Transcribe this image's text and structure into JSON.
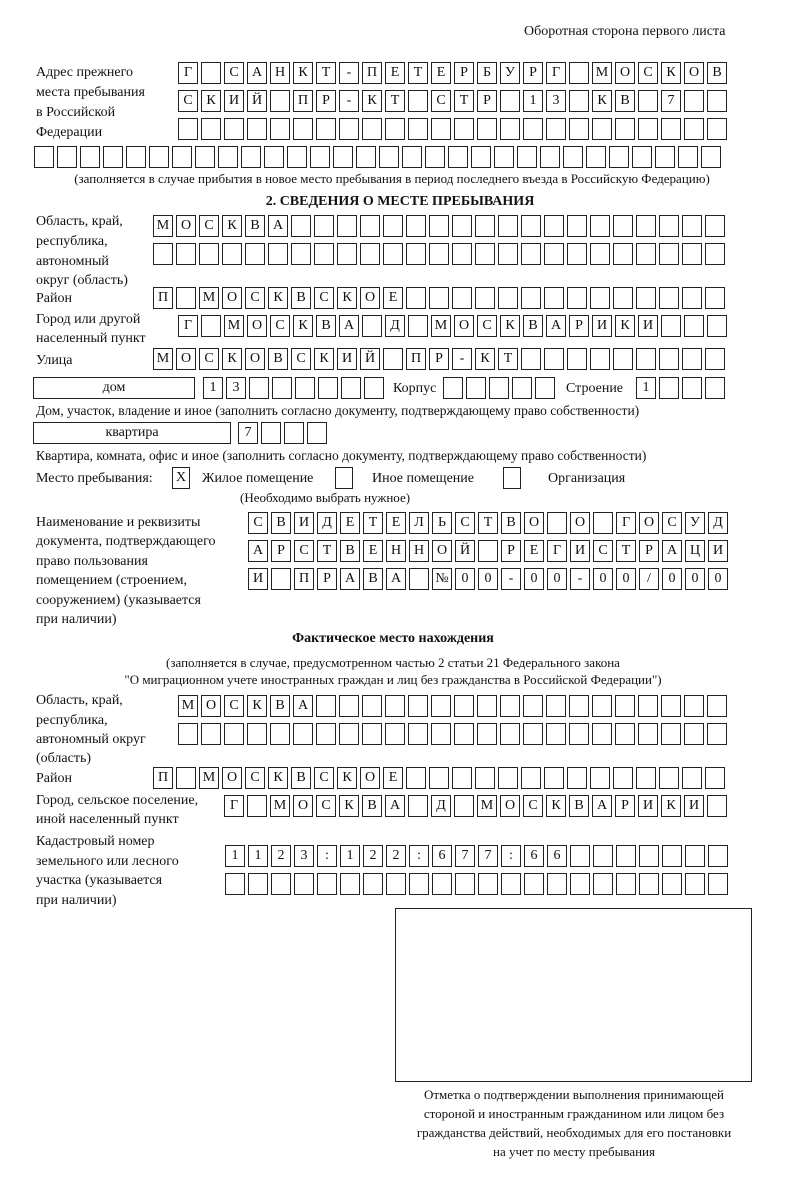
{
  "header": "Оборотная сторона первого листа",
  "prev_address": {
    "label": [
      "Адрес прежнего",
      "места пребывания",
      "в Российской",
      "Федерации"
    ],
    "rows": [
      "Г САНКТ-ПЕТЕРБУРГ МОСКОВ",
      "СКИЙ ПР-КТ СТР 13 КВ 7  ",
      "                        ",
      "                              "
    ],
    "note": "(заполняется в случае прибытия в новое место пребывания в период последнего въезда в Российскую Федерацию)"
  },
  "section2": {
    "title": "2. СВЕДЕНИЯ О МЕСТЕ ПРЕБЫВАНИЯ",
    "region_label": [
      "Область, край,",
      "республика,",
      "автономный",
      "округ (область)"
    ],
    "region_rows": [
      "МОСКВА                   ",
      "                         "
    ],
    "district_label": "Район",
    "district_row": "П МОСКВСКОЕ              ",
    "city_label": [
      "Город или другой",
      "населенный пункт"
    ],
    "city_row": "Г МОСКВА Д МОСКВАРИКИ   ",
    "street_label": "Улица",
    "street_row": "МОСКОВСКИЙ ПР-КТ         ",
    "house_type": "дом",
    "house_row": "13      ",
    "korpus_label": "Корпус",
    "korpus_row": "     ",
    "building_label": "Строение",
    "building_row": "1   ",
    "house_note": "Дом, участок, владение и иное (заполнить согласно документу, подтверждающему право собственности)",
    "flat_type": "квартира",
    "flat_row": "7   ",
    "flat_note": "Квартира, комната, офис и иное (заполнить согласно документу, подтверждающему право собственности)",
    "stay_label": "Место пребывания:",
    "stay_options": [
      {
        "label": "Жилое помещение",
        "mark": "X"
      },
      {
        "label": "Иное помещение",
        "mark": ""
      },
      {
        "label": "Организация",
        "mark": ""
      }
    ],
    "stay_note": "(Необходимо выбрать нужное)",
    "doc_label": [
      "Наименование и реквизиты",
      "документа, подтверждающего",
      "право пользования",
      "помещением (строением,",
      "сооружением) (указывается",
      "при наличии)"
    ],
    "doc_rows": [
      "СВИДЕТЕЛЬСТВО О ГОСУД",
      "АРСТВЕННОЙ РЕГИСТРАЦИ",
      "И ПРАВА №00-00-00/000"
    ]
  },
  "actual": {
    "title": "Фактическое место нахождения",
    "note1": "(заполняется в случае, предусмотренном частью 2 статьи 21 Федерального закона",
    "note2": "\"О миграционном учете иностранных граждан и лиц без гражданства в Российской Федерации\")",
    "region_label": [
      "Область, край,",
      "республика,",
      "автономный округ",
      "(область)"
    ],
    "region_rows": [
      "МОСКВА                  ",
      "                        "
    ],
    "district_label": "Район",
    "district_row": "П МОСКВСКОЕ              ",
    "city_label": [
      "Город, сельское поселение,",
      "иной населенный пункт"
    ],
    "city_row": "Г МОСКВА Д МОСКВАРИКИ ",
    "cadastre_label": [
      "Кадастровый номер",
      "земельного или лесного",
      "участка (указывается",
      "при наличии)"
    ],
    "cadastre_rows": [
      "1123:122:677:66       ",
      "                      "
    ]
  },
  "stamp_caption": [
    "Отметка о подтверждении выполнения принимающей",
    "стороной и иностранным гражданином или лицом без",
    "гражданства действий, необходимых для его постановки",
    "на учет по месту пребывания"
  ]
}
